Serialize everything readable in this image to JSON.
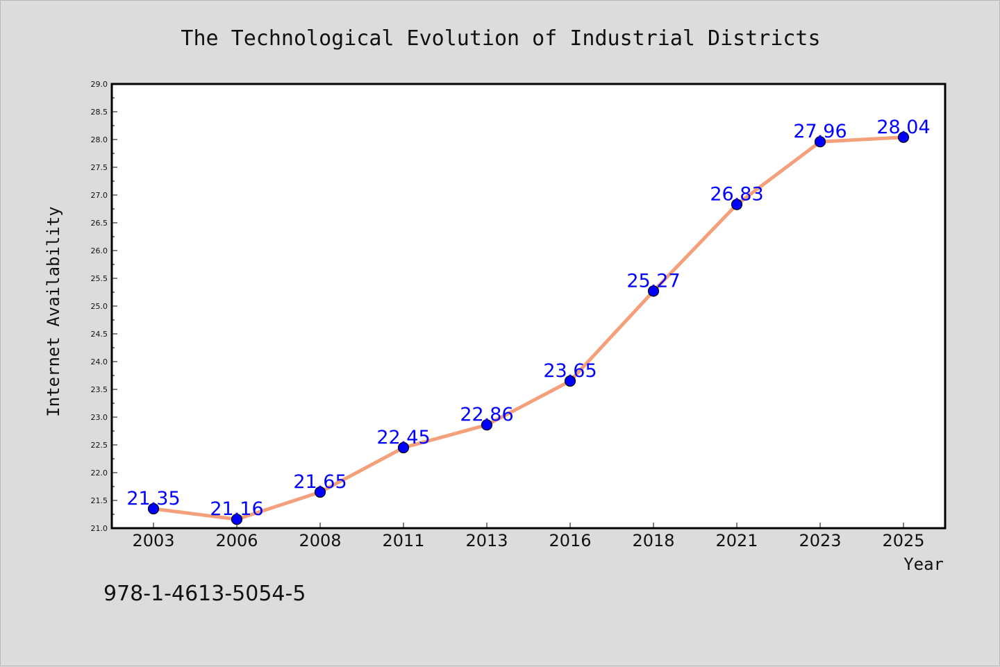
{
  "chart_data": {
    "type": "line",
    "title": "The Technological Evolution of Industrial Districts",
    "xlabel": "Year",
    "ylabel": "Internet Availability",
    "categories": [
      "2003",
      "2006",
      "2008",
      "2011",
      "2013",
      "2016",
      "2018",
      "2021",
      "2023",
      "2025"
    ],
    "series": [
      {
        "values": [
          21.35,
          21.16,
          21.65,
          22.45,
          22.86,
          23.65,
          25.27,
          26.83,
          27.96,
          28.04
        ]
      }
    ],
    "ylim": [
      21.0,
      29.0
    ],
    "yticks": [
      "21.0",
      "21.5",
      "22.0",
      "22.5",
      "23.0",
      "23.5",
      "24.0",
      "24.5",
      "25.0",
      "25.5",
      "26.0",
      "26.5",
      "27.0",
      "27.5",
      "28.0",
      "28.5",
      "29.0"
    ],
    "data_labels": [
      "21.35",
      "21.16",
      "21.65",
      "22.45",
      "22.86",
      "23.65",
      "25.27",
      "26.83",
      "27.96",
      "28.04"
    ],
    "grid": false,
    "colors": {
      "line": "#f4a07a",
      "marker": "#0000ff",
      "label": "#0000ff",
      "background": "#dcdcdc",
      "plot_background": "#ffffff"
    }
  },
  "annotation": "978-1-4613-5054-5"
}
